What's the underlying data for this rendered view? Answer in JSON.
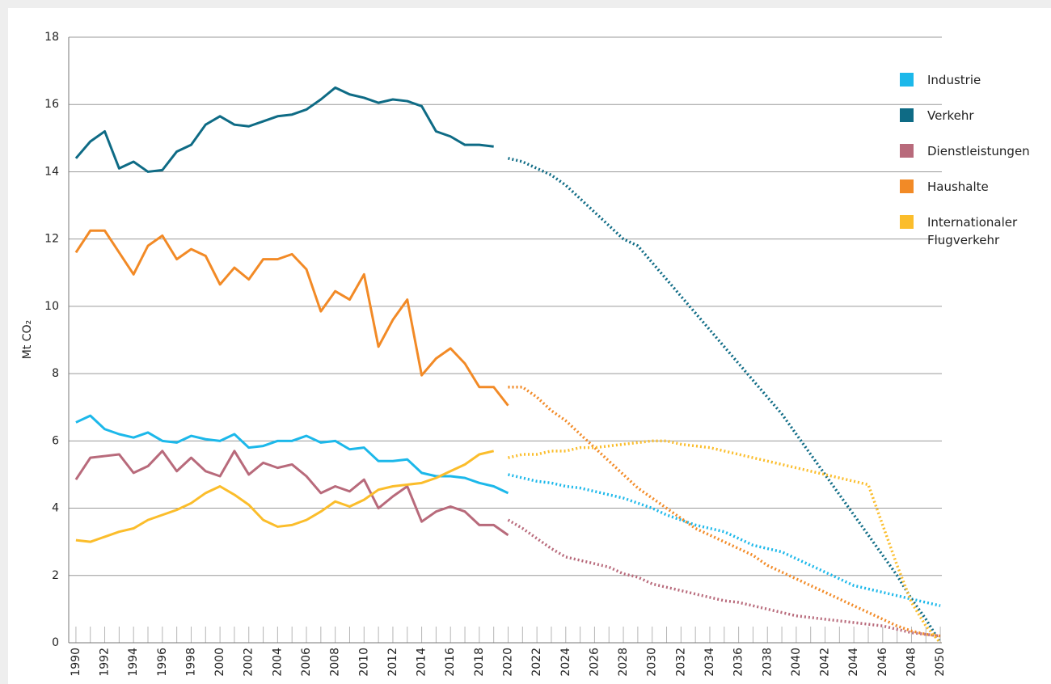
{
  "chart_data": {
    "type": "line",
    "y_label": "Mt CO₂",
    "x": [
      1990,
      1991,
      1992,
      1993,
      1994,
      1995,
      1996,
      1997,
      1998,
      1999,
      2000,
      2001,
      2002,
      2003,
      2004,
      2005,
      2006,
      2007,
      2008,
      2009,
      2010,
      2011,
      2012,
      2013,
      2014,
      2015,
      2016,
      2017,
      2018,
      2019,
      2020
    ],
    "x_projection": [
      2020,
      2021,
      2022,
      2023,
      2024,
      2025,
      2026,
      2027,
      2028,
      2029,
      2030,
      2031,
      2032,
      2033,
      2034,
      2035,
      2036,
      2037,
      2038,
      2039,
      2040,
      2041,
      2042,
      2043,
      2044,
      2045,
      2046,
      2047,
      2048,
      2049,
      2050
    ],
    "xlim": [
      1989.5,
      2050.5
    ],
    "xticks": [
      1990,
      1992,
      1994,
      1996,
      1998,
      2000,
      2002,
      2004,
      2006,
      2008,
      2010,
      2012,
      2014,
      2016,
      2018,
      2020,
      2022,
      2024,
      2026,
      2028,
      2030,
      2032,
      2034,
      2036,
      2038,
      2040,
      2042,
      2044,
      2046,
      2048,
      2050
    ],
    "ylim": [
      0,
      18
    ],
    "yticks": [
      0,
      2,
      4,
      6,
      8,
      10,
      12,
      14,
      16,
      18
    ],
    "grid": true,
    "series": [
      {
        "name": "Industrie",
        "color": "#1cb8ea",
        "values": [
          6.55,
          6.75,
          6.35,
          6.2,
          6.1,
          6.25,
          6.0,
          5.95,
          6.15,
          6.05,
          6.0,
          6.2,
          5.8,
          5.85,
          6.0,
          6.0,
          6.15,
          5.95,
          6.0,
          5.75,
          5.8,
          5.4,
          5.4,
          5.45,
          5.05,
          4.95,
          4.95,
          4.9,
          4.75,
          4.65,
          4.45
        ],
        "projection": [
          5.0,
          4.9,
          4.8,
          4.75,
          4.65,
          4.6,
          4.5,
          4.4,
          4.3,
          4.15,
          4.0,
          3.8,
          3.65,
          3.5,
          3.4,
          3.3,
          3.1,
          2.9,
          2.8,
          2.7,
          2.5,
          2.3,
          2.1,
          1.9,
          1.7,
          1.6,
          1.5,
          1.4,
          1.3,
          1.2,
          1.1
        ]
      },
      {
        "name": "Verkehr",
        "color": "#0e6b85",
        "values": [
          14.4,
          14.9,
          15.2,
          14.1,
          14.3,
          14.0,
          14.05,
          14.6,
          14.8,
          15.4,
          15.65,
          15.4,
          15.35,
          15.5,
          15.65,
          15.7,
          15.85,
          16.15,
          16.5,
          16.3,
          16.2,
          16.05,
          16.15,
          16.1,
          15.95,
          15.2,
          15.05,
          14.8,
          14.8,
          14.75,
          null
        ],
        "projection": [
          14.4,
          14.3,
          14.1,
          13.9,
          13.6,
          13.2,
          12.8,
          12.4,
          12.0,
          11.8,
          11.3,
          10.8,
          10.3,
          9.8,
          9.3,
          8.8,
          8.3,
          7.8,
          7.3,
          6.8,
          6.2,
          5.6,
          5.0,
          4.4,
          3.8,
          3.2,
          2.6,
          2.0,
          1.3,
          0.7,
          0
        ]
      },
      {
        "name": "Dienstleistungen",
        "color": "#b86a7b",
        "values": [
          4.85,
          5.5,
          5.55,
          5.6,
          5.05,
          5.25,
          5.7,
          5.1,
          5.5,
          5.1,
          4.95,
          5.7,
          5.0,
          5.35,
          5.2,
          5.3,
          4.95,
          4.45,
          4.65,
          4.5,
          4.85,
          4.0,
          4.35,
          4.65,
          3.6,
          3.9,
          4.05,
          3.9,
          3.5,
          3.5,
          3.2
        ],
        "projection": [
          3.65,
          3.4,
          3.1,
          2.8,
          2.55,
          2.45,
          2.35,
          2.25,
          2.05,
          1.95,
          1.75,
          1.65,
          1.55,
          1.45,
          1.35,
          1.25,
          1.2,
          1.1,
          1.0,
          0.9,
          0.8,
          0.75,
          0.7,
          0.65,
          0.6,
          0.55,
          0.5,
          0.4,
          0.3,
          0.25,
          0.2
        ]
      },
      {
        "name": "Haushalte",
        "color": "#f28a26",
        "values": [
          11.6,
          12.25,
          12.25,
          11.6,
          10.95,
          11.8,
          12.1,
          11.4,
          11.7,
          11.5,
          10.65,
          11.15,
          10.8,
          11.4,
          11.4,
          11.55,
          11.1,
          9.85,
          10.45,
          10.2,
          10.95,
          8.8,
          9.6,
          10.2,
          7.95,
          8.45,
          8.75,
          8.3,
          7.6,
          7.6,
          7.05
        ],
        "projection": [
          7.6,
          7.6,
          7.3,
          6.9,
          6.6,
          6.2,
          5.8,
          5.4,
          5.0,
          4.6,
          4.3,
          4.0,
          3.7,
          3.4,
          3.2,
          3.0,
          2.8,
          2.6,
          2.3,
          2.1,
          1.9,
          1.7,
          1.5,
          1.3,
          1.1,
          0.9,
          0.7,
          0.5,
          0.35,
          0.25,
          0.2
        ]
      },
      {
        "name": "Internationaler Flugverkehr",
        "color": "#fbbd2b",
        "values": [
          3.05,
          3.0,
          3.15,
          3.3,
          3.4,
          3.65,
          3.8,
          3.95,
          4.15,
          4.45,
          4.65,
          4.4,
          4.1,
          3.65,
          3.45,
          3.5,
          3.65,
          3.9,
          4.2,
          4.05,
          4.25,
          4.55,
          4.65,
          4.7,
          4.75,
          4.9,
          5.1,
          5.3,
          5.6,
          5.7,
          null
        ],
        "projection": [
          5.5,
          5.6,
          5.6,
          5.7,
          5.7,
          5.8,
          5.8,
          5.85,
          5.9,
          5.95,
          6.0,
          6.0,
          5.9,
          5.85,
          5.8,
          5.7,
          5.6,
          5.5,
          5.4,
          5.3,
          5.2,
          5.1,
          5.0,
          4.9,
          4.8,
          4.7,
          3.5,
          2.3,
          1.2,
          0.5,
          0
        ]
      }
    ]
  }
}
